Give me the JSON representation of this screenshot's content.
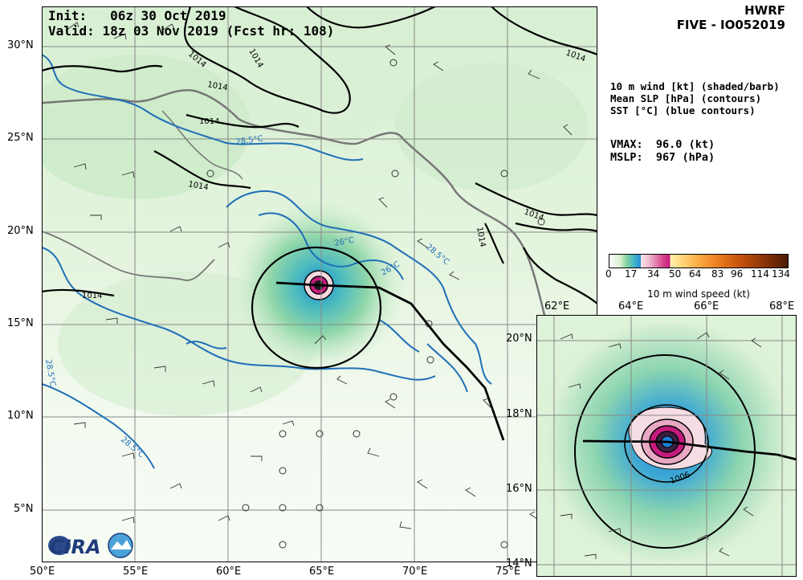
{
  "header": {
    "init_label": "Init:",
    "init_time": "06z 30 Oct 2019",
    "valid_label": "Valid:",
    "valid_time": "18z 03 Nov 2019 (Fcst hr: 108)",
    "model": "HWRF",
    "storm": "FIVE - IO052019"
  },
  "legend": {
    "line1": "10 m wind [kt] (shaded/barb)",
    "line2": "Mean SLP [hPa] (contours)",
    "line3": "SST [°C] (blue contours)"
  },
  "stats": {
    "vmax_label": "VMAX:",
    "vmax_value": "96.0",
    "vmax_unit": "(kt)",
    "mslp_label": "MSLP:",
    "mslp_value": "967",
    "mslp_unit": "(hPa)"
  },
  "colorbar": {
    "ticks": [
      "0",
      "17",
      "34",
      "50",
      "64",
      "83",
      "96",
      "114",
      "134"
    ],
    "label": "10 m wind speed (kt)",
    "colors": [
      "#ffffff",
      "#5cc08a",
      "#2a8fd6",
      "#f3d6e2",
      "#c51b7d",
      "#ffe08a",
      "#f9a23b",
      "#d9620e",
      "#7a2e0a"
    ]
  },
  "main_map": {
    "x_ticks": [
      "50°E",
      "55°E",
      "60°E",
      "65°E",
      "70°E",
      "75°E"
    ],
    "y_ticks": [
      "30°N",
      "25°N",
      "20°N",
      "15°N",
      "10°N",
      "5°N"
    ],
    "isobar_labels": [
      "1014",
      "1014",
      "1014",
      "1014",
      "1014",
      "1014",
      "1014",
      "1014",
      "1014"
    ],
    "sst_labels": [
      "28.5°C",
      "26°C",
      "28.5°C",
      "26°C",
      "28.5°C",
      "28.5°C"
    ]
  },
  "inset_map": {
    "x_ticks": [
      "62°E",
      "64°E",
      "66°E",
      "68°E"
    ],
    "y_ticks": [
      "20°N",
      "18°N",
      "16°N",
      "14°N"
    ],
    "isobar_label": "1006"
  },
  "logos": {
    "cira": "CIRA"
  }
}
